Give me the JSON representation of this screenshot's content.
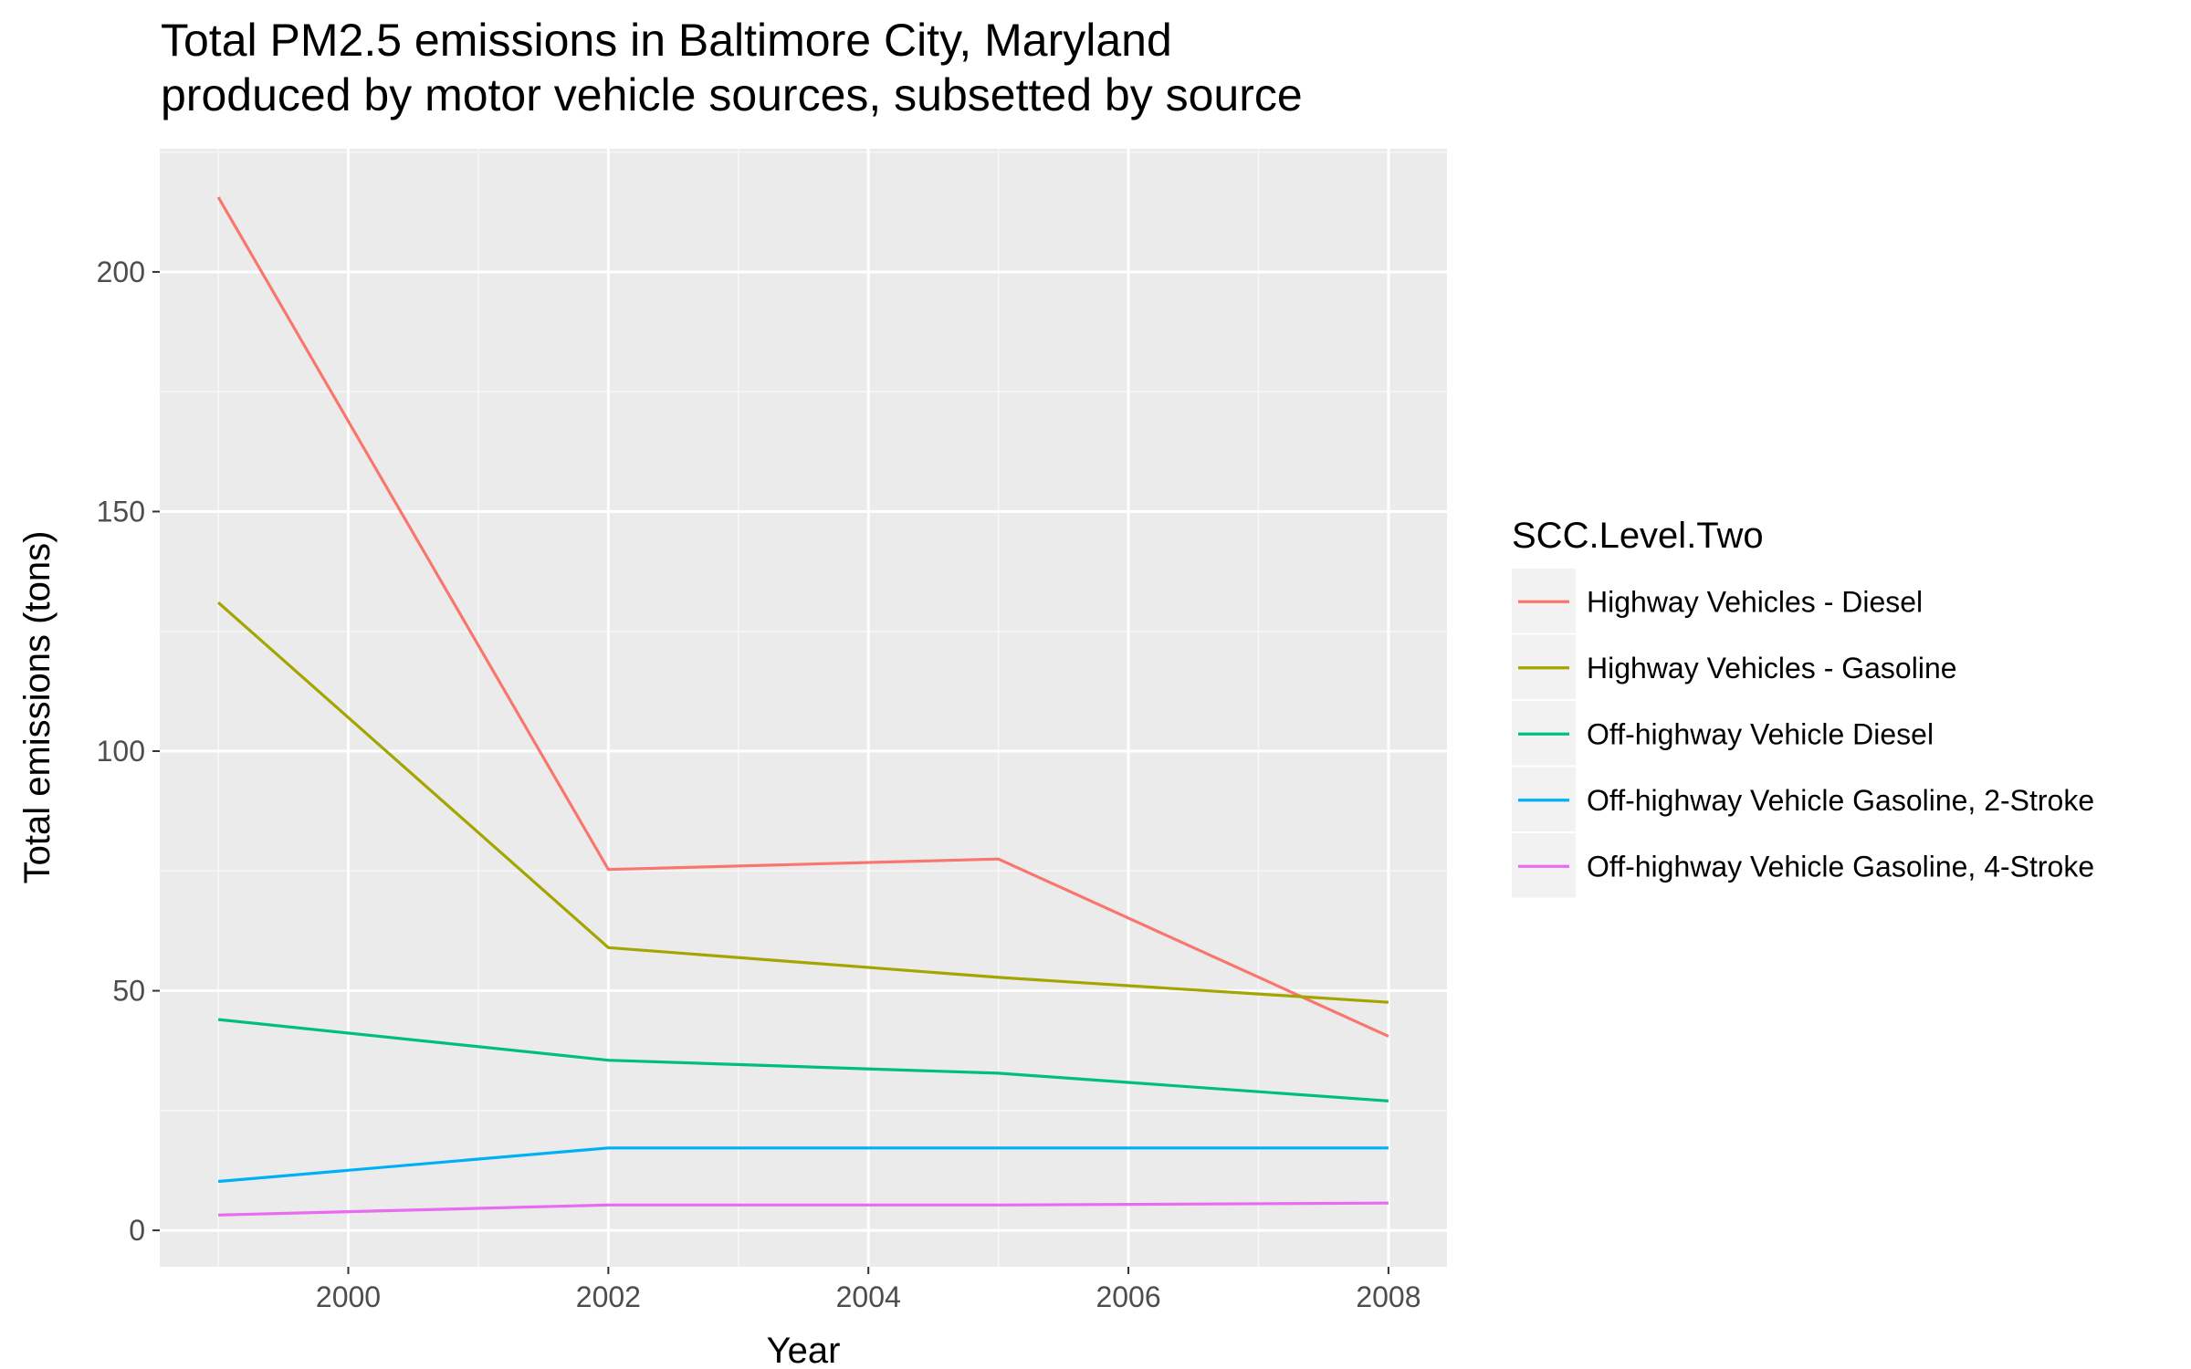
{
  "chart_data": {
    "type": "line",
    "title_lines": [
      "Total PM2.5 emissions in Baltimore City, Maryland",
      "produced by motor vehicle sources, subsetted by source"
    ],
    "xlabel": "Year",
    "ylabel": "Total emissions (tons)",
    "x": [
      1999,
      2002,
      2005,
      2008
    ],
    "xlim": [
      1998.55,
      2008.45
    ],
    "ylim": [
      -7.6,
      225.7
    ],
    "x_ticks": [
      2000,
      2002,
      2004,
      2006,
      2008
    ],
    "x_tick_labels": [
      "2000",
      "2002",
      "2004",
      "2006",
      "2008"
    ],
    "y_ticks": [
      0,
      50,
      100,
      150,
      200
    ],
    "y_tick_labels": [
      "0",
      "50",
      "100",
      "150",
      "200"
    ],
    "grid": true,
    "legend_position": "right",
    "legend_title": "SCC.Level.Two",
    "series": [
      {
        "name": "Highway Vehicles - Diesel",
        "color": "#F8766D",
        "values": [
          215.6,
          75.3,
          77.5,
          40.5
        ]
      },
      {
        "name": "Highway Vehicles - Gasoline",
        "color": "#A3A500",
        "values": [
          131.0,
          59.0,
          52.8,
          47.6
        ]
      },
      {
        "name": "Off-highway Vehicle Diesel",
        "color": "#00BF7D",
        "values": [
          44.0,
          35.5,
          32.8,
          27.0
        ]
      },
      {
        "name": "Off-highway Vehicle Gasoline, 2-Stroke",
        "color": "#00B0F6",
        "values": [
          10.2,
          17.2,
          17.2,
          17.2
        ]
      },
      {
        "name": "Off-highway Vehicle Gasoline, 4-Stroke",
        "color": "#E76BF3",
        "values": [
          3.2,
          5.3,
          5.3,
          5.7
        ]
      }
    ]
  }
}
